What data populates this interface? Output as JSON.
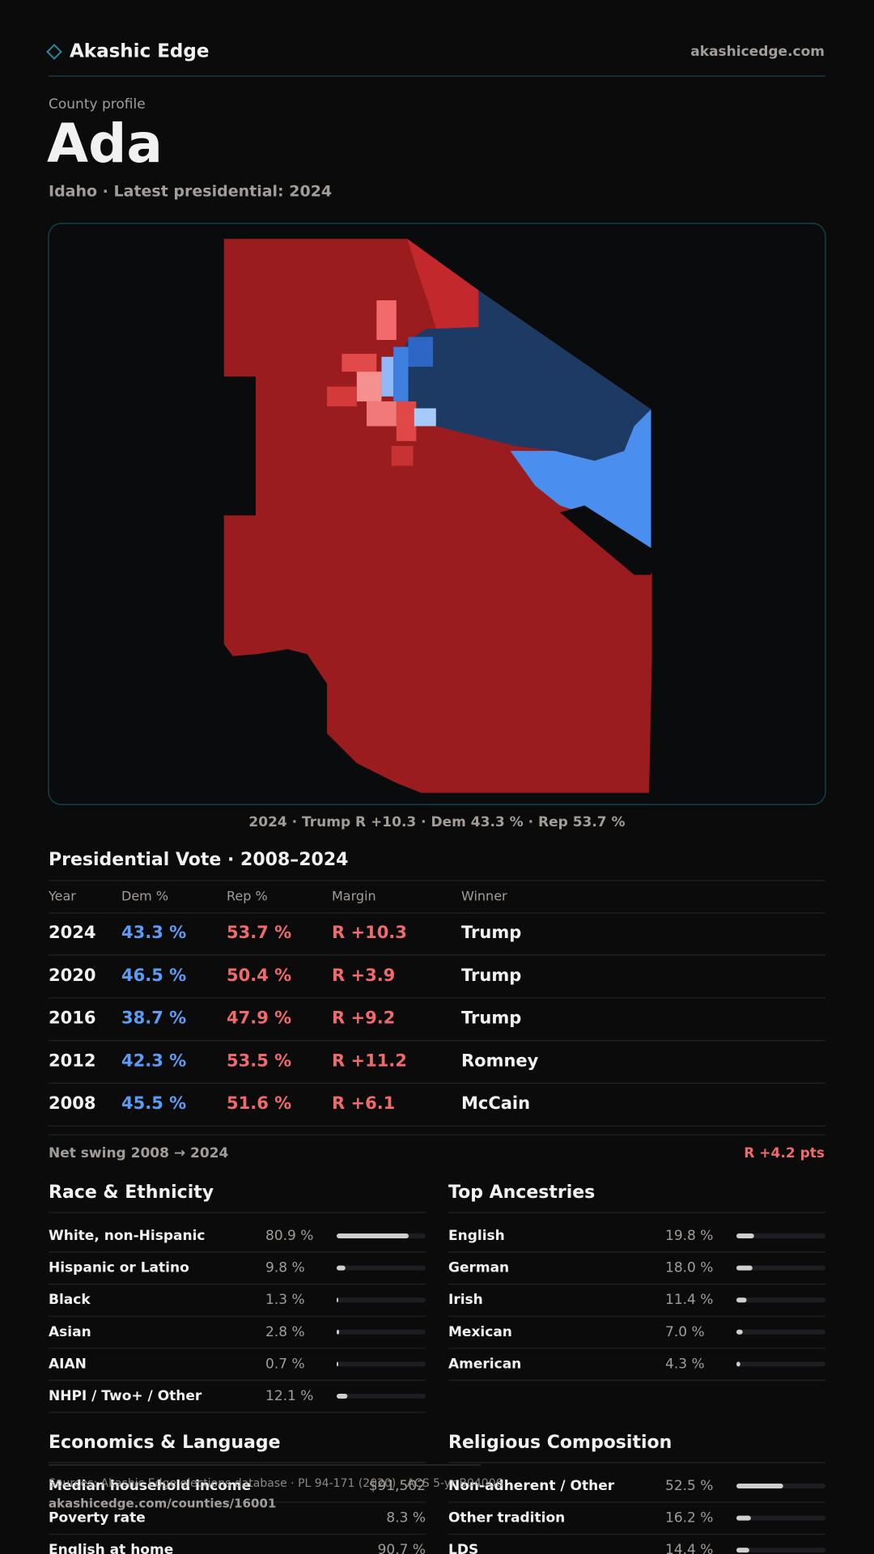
{
  "header": {
    "brand": "Akashic Edge",
    "site": "akashicedge.com"
  },
  "profile": {
    "kicker": "County profile",
    "name": "Ada",
    "subtitle": "Idaho · Latest presidential: 2024"
  },
  "map_caption": "2024 · Trump R +10.3 · Dem 43.3 % · Rep 53.7 %",
  "votes": {
    "title": "Presidential Vote · 2008–2024",
    "columns": [
      "Year",
      "Dem %",
      "Rep %",
      "Margin",
      "Winner"
    ],
    "rows": [
      [
        "2024",
        "43.3 %",
        "53.7 %",
        "R +10.3",
        "Trump"
      ],
      [
        "2020",
        "46.5 %",
        "50.4 %",
        "R +3.9",
        "Trump"
      ],
      [
        "2016",
        "38.7 %",
        "47.9 %",
        "R +9.2",
        "Trump"
      ],
      [
        "2012",
        "42.3 %",
        "53.5 %",
        "R +11.2",
        "Romney"
      ],
      [
        "2008",
        "45.5 %",
        "51.6 %",
        "R +6.1",
        "McCain"
      ]
    ]
  },
  "net_swing": {
    "label": "Net swing 2008 → 2024",
    "value": "R +4.2 pts"
  },
  "race": {
    "title": "Race & Ethnicity",
    "rows": [
      {
        "label": "White, non-Hispanic",
        "value": 80.9,
        "value_label": "80.9 %"
      },
      {
        "label": "Hispanic or Latino",
        "value": 9.8,
        "value_label": "9.8 %"
      },
      {
        "label": "Black",
        "value": 1.3,
        "value_label": "1.3 %"
      },
      {
        "label": "Asian",
        "value": 2.8,
        "value_label": "2.8 %"
      },
      {
        "label": "AIAN",
        "value": 0.7,
        "value_label": "0.7 %"
      },
      {
        "label": "NHPI / Two+ / Other",
        "value": 12.1,
        "value_label": "12.1 %"
      }
    ]
  },
  "ancestries": {
    "title": "Top Ancestries",
    "rows": [
      {
        "label": "English",
        "value": 19.8,
        "value_label": "19.8 %"
      },
      {
        "label": "German",
        "value": 18.0,
        "value_label": "18.0 %"
      },
      {
        "label": "Irish",
        "value": 11.4,
        "value_label": "11.4 %"
      },
      {
        "label": "Mexican",
        "value": 7.0,
        "value_label": "7.0 %"
      },
      {
        "label": "American",
        "value": 4.3,
        "value_label": "4.3 %"
      }
    ]
  },
  "economics": {
    "title": "Economics & Language",
    "rows": [
      [
        "Median household income",
        "$91,502"
      ],
      [
        "Poverty rate",
        "8.3 %"
      ],
      [
        "English at home",
        "90.7 %"
      ]
    ]
  },
  "religion": {
    "title": "Religious Composition",
    "rows": [
      {
        "label": "Non-adherent / Other",
        "value": 52.5,
        "value_label": "52.5 %"
      },
      {
        "label": "Other tradition",
        "value": 16.2,
        "value_label": "16.2 %"
      },
      {
        "label": "LDS",
        "value": 14.4,
        "value_label": "14.4 %"
      }
    ]
  },
  "footer": {
    "sources": "Sources: Akashic Edge elections database · PL 94-171 (2020) · ACS 5-yr B04006",
    "url": "akashicedge.com/counties/16001"
  }
}
